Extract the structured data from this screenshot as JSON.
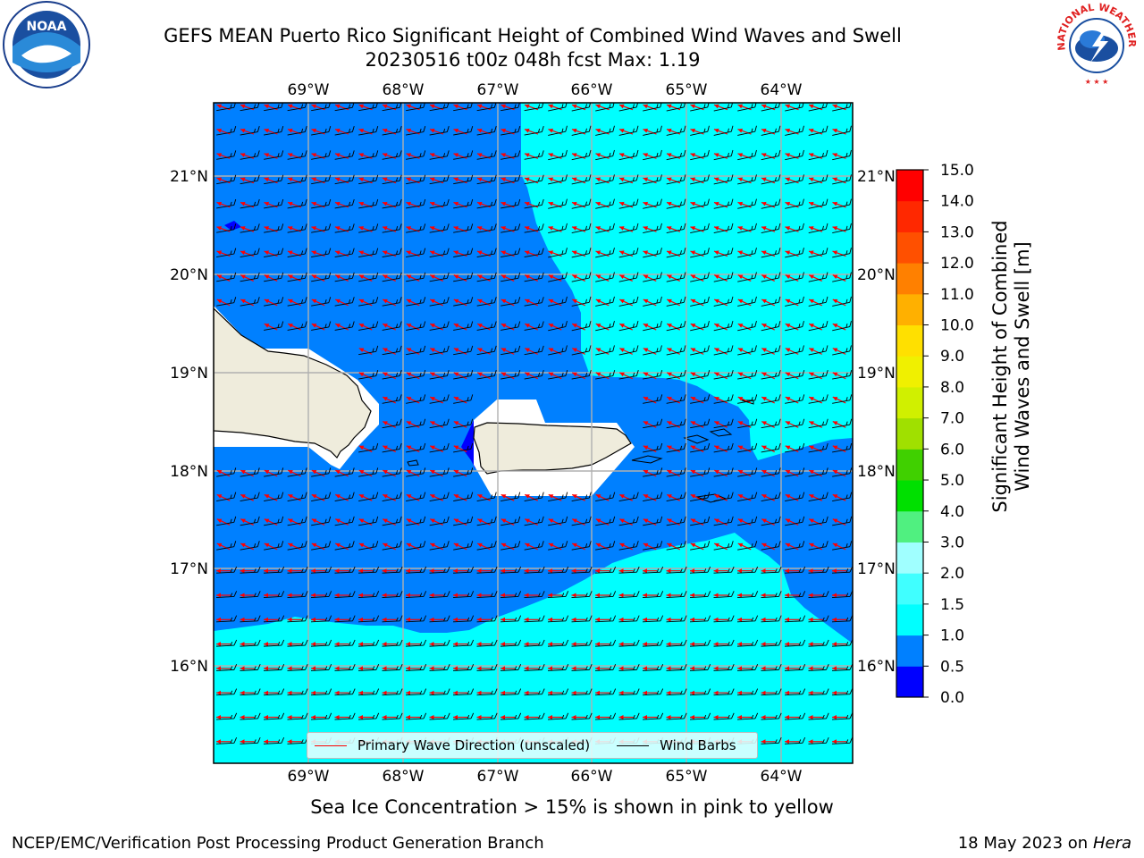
{
  "title": {
    "line1": "GEFS MEAN Puerto Rico Significant Height of Combined Wind Waves and Swell",
    "line2": "20230516 t00z 048h fcst   Max: 1.19"
  },
  "logos": {
    "left": "noaa-logo",
    "right": "nws-logo",
    "right_text": "NATIONAL WEATHER SERVICE"
  },
  "map": {
    "lon_labels": [
      "69°W",
      "68°W",
      "67°W",
      "66°W",
      "65°W",
      "64°W"
    ],
    "lat_labels": [
      "21°N",
      "20°N",
      "19°N",
      "18°N",
      "17°N",
      "16°N"
    ],
    "colors": {
      "dark_blue": "#0000ff",
      "blue": "#0080ff",
      "cyan": "#00ffff",
      "land": "#efecdc",
      "wave_arrow": "#ff0000",
      "wind_barb": "#000000"
    }
  },
  "legend": {
    "wave_label": "Primary Wave Direction (unscaled)",
    "wind_label": "Wind Barbs"
  },
  "colorbar": {
    "label_line1": "Significant Height of Combined",
    "label_line2": "Wind Waves and Swell [m]",
    "ticks": [
      "0.0",
      "0.5",
      "1.0",
      "1.5",
      "2.0",
      "3.0",
      "4.0",
      "5.0",
      "6.0",
      "7.0",
      "8.0",
      "9.0",
      "10.0",
      "11.0",
      "12.0",
      "13.0",
      "14.0",
      "15.0"
    ],
    "colors": [
      "#0000ff",
      "#0080ff",
      "#00ffff",
      "#40ffff",
      "#a0ffff",
      "#50f080",
      "#00e000",
      "#40d000",
      "#a0e000",
      "#d0f000",
      "#f0f000",
      "#ffe000",
      "#ffb000",
      "#ff8000",
      "#ff5000",
      "#ff2800",
      "#ff0000"
    ]
  },
  "footer": {
    "ice_note": "Sea Ice Concentration > 15% is shown in pink to yellow",
    "credit": "NCEP/EMC/Verification Post Processing Product Generation Branch",
    "date": "18 May 2023 on",
    "machine": "Hera"
  }
}
